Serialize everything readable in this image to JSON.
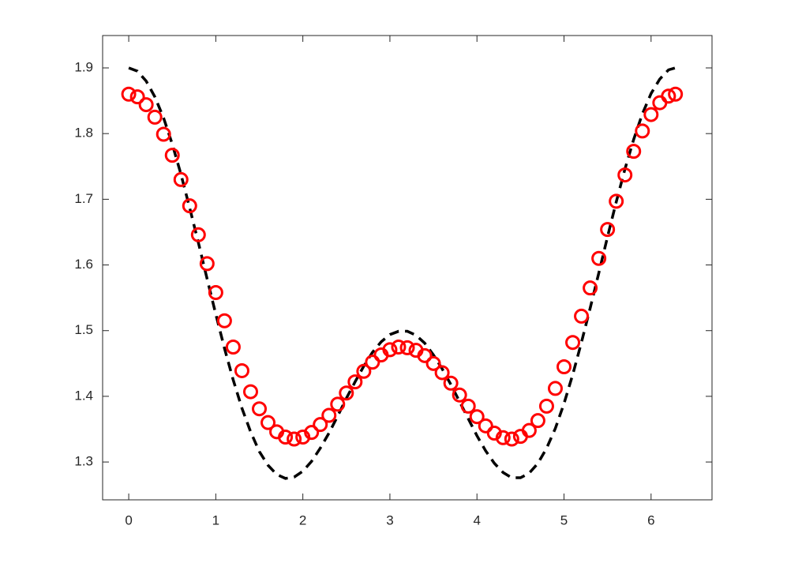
{
  "chart_data": {
    "type": "line",
    "x": [
      0,
      0.1,
      0.2,
      0.3,
      0.4,
      0.5,
      0.6,
      0.7,
      0.8,
      0.9,
      1.0,
      1.1,
      1.2,
      1.3,
      1.4,
      1.5,
      1.6,
      1.7,
      1.8,
      1.9,
      2.0,
      2.1,
      2.2,
      2.3,
      2.4,
      2.5,
      2.6,
      2.7,
      2.8,
      2.9,
      3.0,
      3.1,
      3.2,
      3.3,
      3.4,
      3.5,
      3.6,
      3.7,
      3.8,
      3.9,
      4.0,
      4.1,
      4.2,
      4.3,
      4.4,
      4.5,
      4.6,
      4.7,
      4.8,
      4.9,
      5.0,
      5.1,
      5.2,
      5.3,
      5.4,
      5.5,
      5.6,
      5.7,
      5.8,
      5.9,
      6.0,
      6.1,
      6.2,
      6.28
    ],
    "series": [
      {
        "color": "#000000",
        "line_style": "dashed",
        "marker": "none",
        "values": [
          1.9,
          1.895,
          1.88,
          1.856,
          1.824,
          1.784,
          1.738,
          1.687,
          1.634,
          1.579,
          1.525,
          1.473,
          1.425,
          1.382,
          1.346,
          1.316,
          1.295,
          1.281,
          1.275,
          1.277,
          1.286,
          1.301,
          1.321,
          1.344,
          1.37,
          1.397,
          1.422,
          1.446,
          1.467,
          1.483,
          1.494,
          1.499,
          1.499,
          1.493,
          1.481,
          1.463,
          1.442,
          1.418,
          1.392,
          1.366,
          1.34,
          1.317,
          1.298,
          1.284,
          1.276,
          1.276,
          1.283,
          1.298,
          1.321,
          1.351,
          1.389,
          1.433,
          1.482,
          1.534,
          1.588,
          1.643,
          1.696,
          1.746,
          1.791,
          1.83,
          1.861,
          1.883,
          1.897,
          1.9
        ]
      },
      {
        "color": "#ff0000",
        "line_style": "solid",
        "marker": "circle",
        "values": [
          1.86,
          1.856,
          1.844,
          1.825,
          1.799,
          1.767,
          1.73,
          1.69,
          1.646,
          1.602,
          1.558,
          1.515,
          1.475,
          1.439,
          1.407,
          1.381,
          1.36,
          1.346,
          1.338,
          1.335,
          1.338,
          1.345,
          1.357,
          1.371,
          1.388,
          1.405,
          1.422,
          1.438,
          1.452,
          1.463,
          1.471,
          1.475,
          1.474,
          1.47,
          1.462,
          1.45,
          1.436,
          1.42,
          1.402,
          1.385,
          1.369,
          1.355,
          1.344,
          1.337,
          1.335,
          1.339,
          1.348,
          1.363,
          1.385,
          1.412,
          1.445,
          1.482,
          1.522,
          1.565,
          1.61,
          1.654,
          1.697,
          1.737,
          1.773,
          1.804,
          1.829,
          1.847,
          1.857,
          1.86
        ]
      }
    ],
    "xlim": [
      -0.3,
      6.7
    ],
    "xticks": [
      0,
      1,
      2,
      3,
      4,
      5,
      6
    ],
    "ylim": [
      1.2424,
      1.9493
    ],
    "yticks": [
      1.3,
      1.4,
      1.5,
      1.6,
      1.7,
      1.8,
      1.9
    ],
    "grid": false
  }
}
